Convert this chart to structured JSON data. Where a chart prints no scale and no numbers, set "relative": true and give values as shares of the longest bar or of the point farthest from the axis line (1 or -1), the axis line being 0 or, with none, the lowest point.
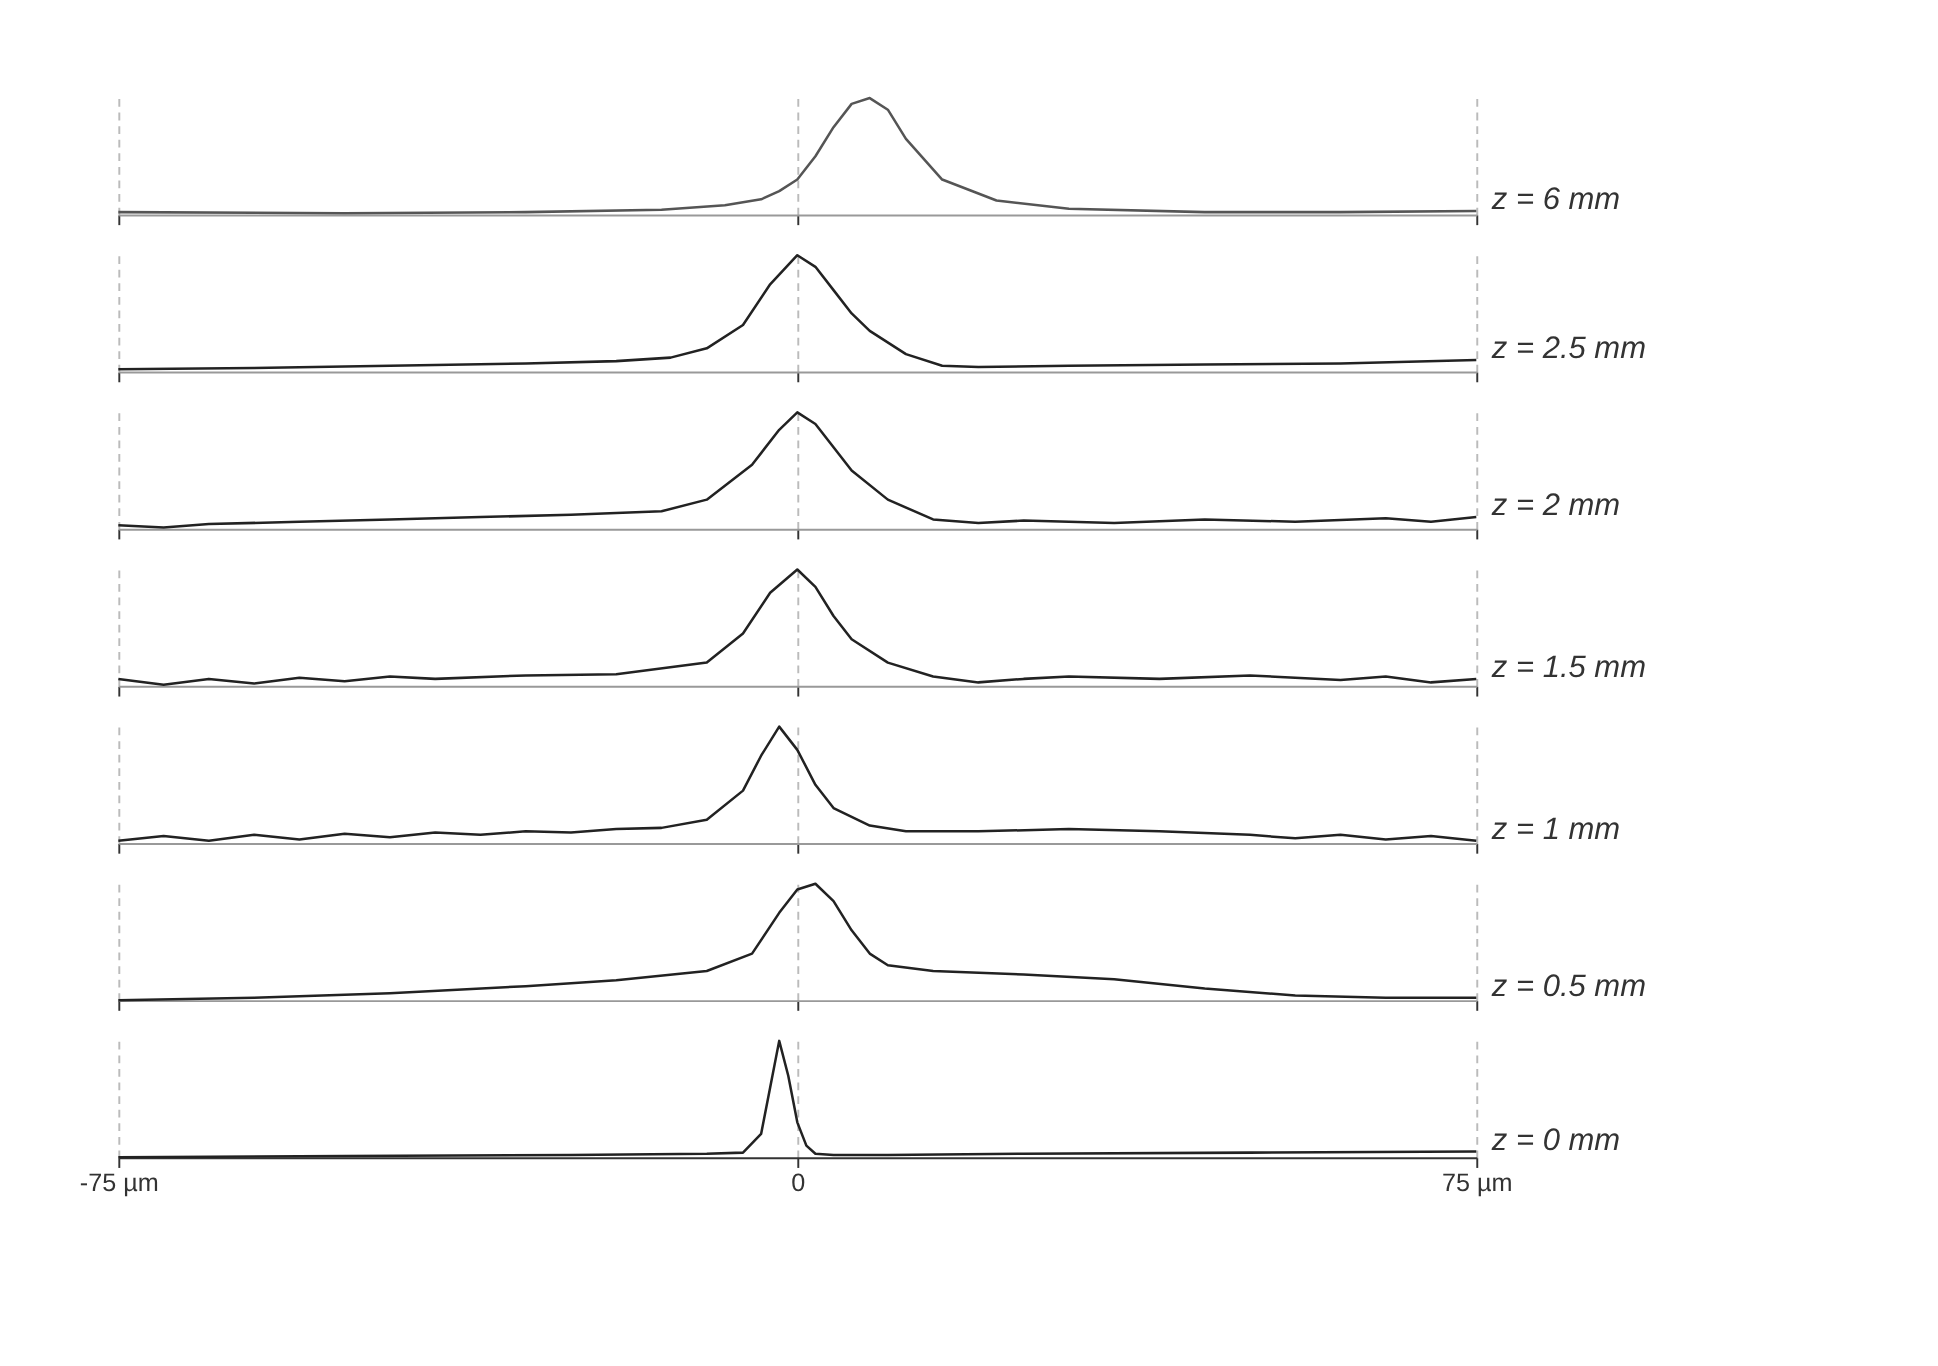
{
  "chart_data": [
    {
      "type": "line",
      "relative": true,
      "xlim": [
        -75,
        75
      ],
      "tick_labels": false,
      "series": [
        {
          "name": "z = 6 mm",
          "color": "#555555",
          "x": [
            -75,
            -50,
            -30,
            -15,
            -8,
            -4,
            -2,
            0,
            2,
            4,
            6,
            8,
            10,
            12,
            16,
            22,
            30,
            45,
            60,
            75
          ],
          "values": [
            0.02,
            0.01,
            0.02,
            0.04,
            0.08,
            0.13,
            0.2,
            0.3,
            0.5,
            0.75,
            0.95,
            1,
            0.9,
            0.65,
            0.3,
            0.12,
            0.05,
            0.02,
            0.02,
            0.03
          ]
        }
      ]
    },
    {
      "type": "line",
      "relative": true,
      "xlim": [
        -75,
        75
      ],
      "tick_labels": false,
      "series": [
        {
          "name": "z = 2.5 mm",
          "color": "#222222",
          "x": [
            -75,
            -60,
            -45,
            -30,
            -20,
            -14,
            -10,
            -6,
            -3,
            0,
            2,
            4,
            6,
            8,
            12,
            16,
            20,
            30,
            45,
            60,
            75
          ],
          "values": [
            0.02,
            0.03,
            0.05,
            0.07,
            0.09,
            0.12,
            0.2,
            0.4,
            0.75,
            1,
            0.9,
            0.7,
            0.5,
            0.35,
            0.15,
            0.05,
            0.04,
            0.05,
            0.06,
            0.07,
            0.1
          ]
        }
      ]
    },
    {
      "type": "line",
      "relative": true,
      "xlim": [
        -75,
        75
      ],
      "tick_labels": false,
      "series": [
        {
          "name": "z = 2 mm",
          "color": "#222222",
          "x": [
            -75,
            -70,
            -65,
            -55,
            -45,
            -35,
            -25,
            -15,
            -10,
            -5,
            -2,
            0,
            2,
            4,
            6,
            10,
            15,
            20,
            25,
            35,
            45,
            55,
            65,
            70,
            75
          ],
          "values": [
            0.03,
            0.01,
            0.04,
            0.06,
            0.08,
            0.1,
            0.12,
            0.15,
            0.25,
            0.55,
            0.85,
            1,
            0.9,
            0.7,
            0.5,
            0.25,
            0.08,
            0.05,
            0.07,
            0.05,
            0.08,
            0.06,
            0.09,
            0.06,
            0.1
          ]
        }
      ]
    },
    {
      "type": "line",
      "relative": true,
      "xlim": [
        -75,
        75
      ],
      "tick_labels": false,
      "series": [
        {
          "name": "z = 1.5 mm",
          "color": "#222222",
          "x": [
            -75,
            -70,
            -65,
            -60,
            -55,
            -50,
            -45,
            -40,
            -30,
            -20,
            -10,
            -6,
            -3,
            0,
            2,
            4,
            6,
            10,
            15,
            20,
            25,
            30,
            40,
            50,
            60,
            65,
            70,
            75
          ],
          "values": [
            0.06,
            0.01,
            0.06,
            0.02,
            0.07,
            0.04,
            0.08,
            0.06,
            0.09,
            0.1,
            0.2,
            0.45,
            0.8,
            1,
            0.85,
            0.6,
            0.4,
            0.2,
            0.08,
            0.03,
            0.06,
            0.08,
            0.06,
            0.09,
            0.05,
            0.08,
            0.03,
            0.06
          ]
        }
      ]
    },
    {
      "type": "line",
      "relative": true,
      "xlim": [
        -75,
        75
      ],
      "tick_labels": false,
      "series": [
        {
          "name": "z = 1 mm",
          "color": "#222222",
          "x": [
            -75,
            -70,
            -65,
            -60,
            -55,
            -50,
            -45,
            -40,
            -35,
            -30,
            -25,
            -20,
            -15,
            -10,
            -6,
            -4,
            -2,
            0,
            2,
            4,
            8,
            12,
            20,
            30,
            40,
            50,
            55,
            60,
            65,
            70,
            75
          ],
          "values": [
            0.02,
            0.06,
            0.02,
            0.07,
            0.03,
            0.08,
            0.05,
            0.09,
            0.07,
            0.1,
            0.09,
            0.12,
            0.13,
            0.2,
            0.45,
            0.75,
            1,
            0.8,
            0.5,
            0.3,
            0.15,
            0.1,
            0.1,
            0.12,
            0.1,
            0.07,
            0.04,
            0.07,
            0.03,
            0.06,
            0.02
          ]
        }
      ]
    },
    {
      "type": "line",
      "relative": true,
      "xlim": [
        -75,
        75
      ],
      "tick_labels": false,
      "series": [
        {
          "name": "z = 0.5 mm",
          "color": "#222222",
          "x": [
            -75,
            -60,
            -45,
            -30,
            -20,
            -10,
            -5,
            -2,
            0,
            2,
            4,
            6,
            8,
            10,
            15,
            25,
            35,
            45,
            55,
            65,
            75
          ],
          "values": [
            0,
            0.02,
            0.06,
            0.12,
            0.17,
            0.25,
            0.4,
            0.75,
            0.95,
            1,
            0.85,
            0.6,
            0.4,
            0.3,
            0.25,
            0.22,
            0.18,
            0.1,
            0.04,
            0.02,
            0.02
          ]
        }
      ]
    },
    {
      "type": "line",
      "relative": true,
      "xlim": [
        -75,
        75
      ],
      "xticks": [
        {
          "value": -75,
          "label": "-75 µm"
        },
        0,
        {
          "value": 75,
          "label": "75 µm"
        }
      ],
      "tick_labels": "x",
      "series": [
        {
          "name": "z = 0 mm",
          "color": "#222222",
          "x": [
            -75,
            -50,
            -25,
            -10,
            -6,
            -4,
            -3,
            -2,
            -1,
            0,
            1,
            2,
            4,
            10,
            25,
            50,
            75
          ],
          "values": [
            0,
            0.01,
            0.02,
            0.03,
            0.04,
            0.2,
            0.6,
            1,
            0.7,
            0.3,
            0.1,
            0.03,
            0.02,
            0.02,
            0.03,
            0.04,
            0.05
          ]
        }
      ]
    }
  ]
}
